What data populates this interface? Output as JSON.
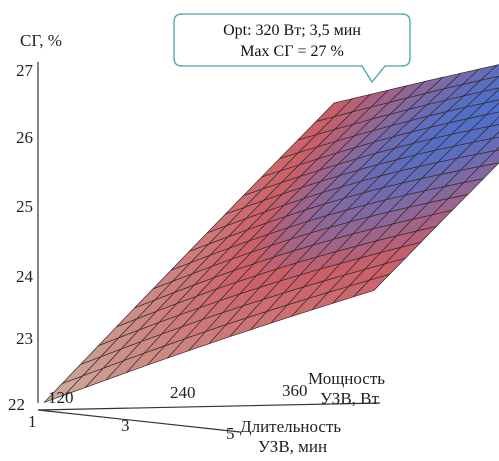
{
  "chart_data": {
    "type": "surface",
    "z_axis": {
      "label": "СГ, %",
      "ticks": [
        "22",
        "23",
        "24",
        "25",
        "26",
        "27"
      ],
      "range": [
        22,
        27
      ]
    },
    "x_axis": {
      "label_line1": "Мощность",
      "label_line2": "УЗВ, Вт",
      "ticks": [
        "120",
        "240",
        "360"
      ],
      "range": [
        120,
        360
      ]
    },
    "y_axis": {
      "label_line1": "Длительность",
      "label_line2": "УЗВ, мин",
      "ticks": [
        "1",
        "3",
        "5"
      ],
      "range": [
        1,
        5
      ]
    },
    "annotation": {
      "line1": "Opt: 320 Вт; 3,5 мин",
      "line2": "Max СГ = 27 %"
    },
    "optimum": {
      "power": 320,
      "duration": 3.5,
      "value": 27
    },
    "surface_corners": {
      "p120_d1": 22.1,
      "p360_d1": 24.4,
      "p120_d5": 24.8,
      "p360_d5": 26.3
    },
    "colormap": {
      "low": "#c8aa96",
      "mid": "#c8505a",
      "high": "#3c64c8",
      "top": "#7ae6e6"
    }
  }
}
